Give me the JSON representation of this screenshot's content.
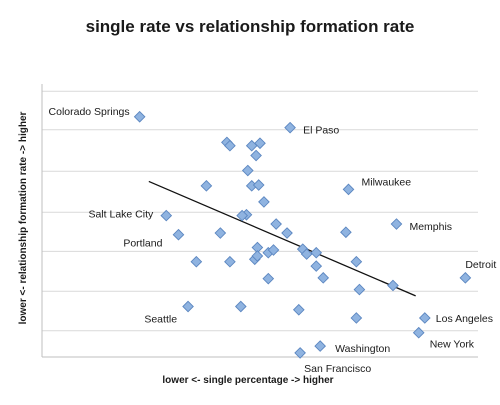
{
  "chart_data": {
    "type": "scatter",
    "title": "single rate vs relationship formation rate",
    "xlabel": "lower <- single percentage -> higher",
    "ylabel": "lower <- relationship formation rate -> higher",
    "xlim": [
      0,
      100
    ],
    "ylim": [
      0,
      100
    ],
    "grid": "horizontal",
    "marker_color": "#8fb3e0",
    "marker_stroke": "#5b86c0",
    "gridline_color": "#d9d9d9",
    "trendline_color": "#111111",
    "points": [
      {
        "x": 22.4,
        "y": 88.0,
        "label": "Colorado Springs"
      },
      {
        "x": 56.9,
        "y": 84.0,
        "label": "El Paso"
      },
      {
        "x": 70.3,
        "y": 61.4,
        "label": "Milwaukee"
      },
      {
        "x": 28.5,
        "y": 51.8,
        "label": "Salt Lake City"
      },
      {
        "x": 81.3,
        "y": 48.7,
        "label": "Memphis"
      },
      {
        "x": 31.3,
        "y": 44.8,
        "label": "Portland"
      },
      {
        "x": 97.1,
        "y": 29.0,
        "label": "Detroit"
      },
      {
        "x": 33.5,
        "y": 18.5,
        "label": "Seattle"
      },
      {
        "x": 87.8,
        "y": 14.3,
        "label": "Los Angeles"
      },
      {
        "x": 86.4,
        "y": 8.9,
        "label": "New York"
      },
      {
        "x": 63.8,
        "y": 4.0,
        "label": "Washington"
      },
      {
        "x": 59.2,
        "y": 1.5,
        "label": "San Francisco"
      },
      {
        "x": 42.4,
        "y": 78.6,
        "label": ""
      },
      {
        "x": 43.1,
        "y": 77.4,
        "label": ""
      },
      {
        "x": 48.1,
        "y": 77.4,
        "label": ""
      },
      {
        "x": 50.0,
        "y": 78.3,
        "label": ""
      },
      {
        "x": 49.1,
        "y": 73.8,
        "label": ""
      },
      {
        "x": 47.2,
        "y": 68.3,
        "label": ""
      },
      {
        "x": 48.1,
        "y": 62.7,
        "label": ""
      },
      {
        "x": 49.7,
        "y": 63.0,
        "label": ""
      },
      {
        "x": 50.9,
        "y": 56.8,
        "label": ""
      },
      {
        "x": 46.9,
        "y": 52.1,
        "label": ""
      },
      {
        "x": 53.7,
        "y": 48.7,
        "label": ""
      },
      {
        "x": 56.2,
        "y": 45.4,
        "label": ""
      },
      {
        "x": 45.9,
        "y": 51.8,
        "label": ""
      },
      {
        "x": 37.7,
        "y": 62.7,
        "label": ""
      },
      {
        "x": 40.9,
        "y": 45.4,
        "label": ""
      },
      {
        "x": 43.1,
        "y": 34.9,
        "label": ""
      },
      {
        "x": 48.8,
        "y": 35.8,
        "label": ""
      },
      {
        "x": 49.4,
        "y": 40.1,
        "label": ""
      },
      {
        "x": 51.9,
        "y": 38.2,
        "label": ""
      },
      {
        "x": 49.4,
        "y": 37.0,
        "label": ""
      },
      {
        "x": 53.1,
        "y": 39.2,
        "label": ""
      },
      {
        "x": 35.4,
        "y": 34.9,
        "label": ""
      },
      {
        "x": 59.8,
        "y": 39.5,
        "label": ""
      },
      {
        "x": 60.7,
        "y": 37.7,
        "label": ""
      },
      {
        "x": 62.9,
        "y": 38.2,
        "label": ""
      },
      {
        "x": 62.9,
        "y": 33.3,
        "label": ""
      },
      {
        "x": 64.5,
        "y": 29.0,
        "label": ""
      },
      {
        "x": 69.7,
        "y": 45.7,
        "label": ""
      },
      {
        "x": 72.1,
        "y": 34.9,
        "label": ""
      },
      {
        "x": 72.8,
        "y": 24.7,
        "label": ""
      },
      {
        "x": 51.9,
        "y": 28.7,
        "label": ""
      },
      {
        "x": 45.6,
        "y": 18.5,
        "label": ""
      },
      {
        "x": 58.9,
        "y": 17.3,
        "label": ""
      },
      {
        "x": 72.1,
        "y": 14.3,
        "label": ""
      },
      {
        "x": 80.5,
        "y": 26.2,
        "label": ""
      }
    ],
    "trendline": {
      "x": [
        24.5,
        85.7
      ],
      "y": [
        64.3,
        22.4
      ]
    }
  }
}
